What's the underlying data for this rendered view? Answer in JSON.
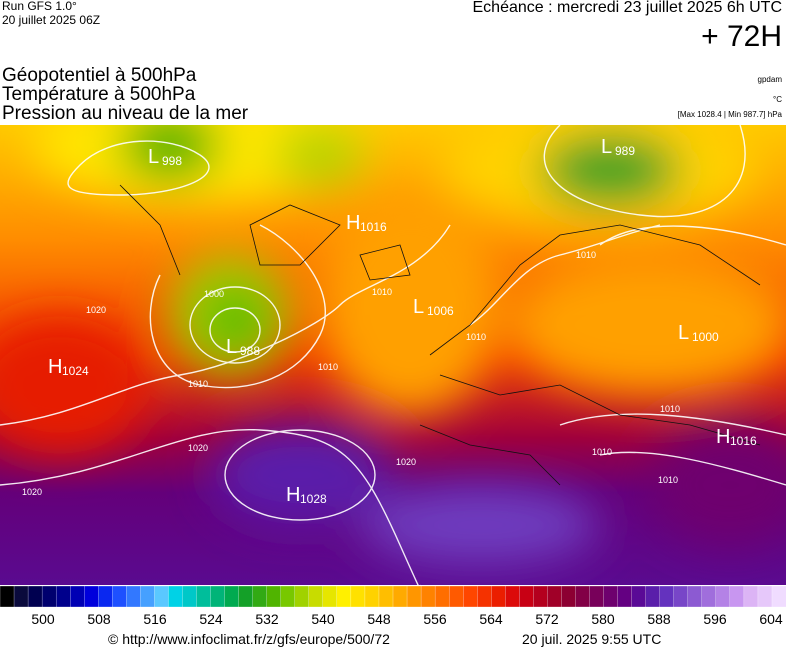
{
  "header": {
    "run": "Run GFS 1.0°",
    "run_date": "20 juillet 2025 06Z",
    "echeance": "Echéance : mercredi 23 juillet 2025 6h UTC",
    "lead": "+ 72H",
    "fields": [
      "Géopotentiel à 500hPa",
      "Température à 500hPa",
      "Pression au niveau de la mer"
    ],
    "units": [
      "gpdam",
      "°C",
      "[Max 1028.4 | Min 987.7] hPa"
    ]
  },
  "map": {
    "centers": [
      {
        "letter": "L",
        "value": 998
      },
      {
        "letter": "L",
        "value": 989
      },
      {
        "letter": "H",
        "value": 1016
      },
      {
        "letter": "L",
        "value": 1006
      },
      {
        "letter": "L",
        "value": 988
      },
      {
        "letter": "H",
        "value": 1024
      },
      {
        "letter": "L",
        "value": 1000
      },
      {
        "letter": "H",
        "value": 1016
      },
      {
        "letter": "H",
        "value": 1028
      }
    ],
    "isobar_labels": [
      1020,
      1020,
      1020,
      1010,
      1010,
      1000,
      1010,
      1010,
      1010,
      1010,
      1010,
      1020,
      1010
    ]
  },
  "colorbar": {
    "colors": [
      "#000000",
      "#0a0a3c",
      "#000050",
      "#00006e",
      "#00008c",
      "#0000b4",
      "#0000dc",
      "#0a28f0",
      "#1e50ff",
      "#3278ff",
      "#46a0ff",
      "#5ac8ff",
      "#00d2e6",
      "#00c8c8",
      "#00be9b",
      "#00b478",
      "#00aa50",
      "#14a028",
      "#32aa14",
      "#50b400",
      "#78c800",
      "#a0d200",
      "#c8dc00",
      "#e6e600",
      "#fff000",
      "#ffe100",
      "#ffd200",
      "#ffbe00",
      "#ffaa00",
      "#ff9600",
      "#ff8200",
      "#ff6e00",
      "#ff5a00",
      "#ff4600",
      "#f53200",
      "#eb1e00",
      "#dc0a0a",
      "#c80014",
      "#b4001e",
      "#a00028",
      "#8c0032",
      "#820046",
      "#78005a",
      "#6e006e",
      "#640082",
      "#5a0a96",
      "#5a1eaa",
      "#6432be",
      "#7846c8",
      "#8c5ad2",
      "#a06edc",
      "#b482e6",
      "#c896f0",
      "#dcb4f5",
      "#e6c8fa",
      "#f0dcff"
    ],
    "labels": [
      500,
      508,
      516,
      524,
      532,
      540,
      548,
      556,
      564,
      572,
      580,
      588,
      596,
      604
    ]
  },
  "footer": {
    "url": "© http://www.infoclimat.fr/z/gfs/europe/500/72",
    "timestamp": "20 juil. 2025  9:55 UTC"
  }
}
